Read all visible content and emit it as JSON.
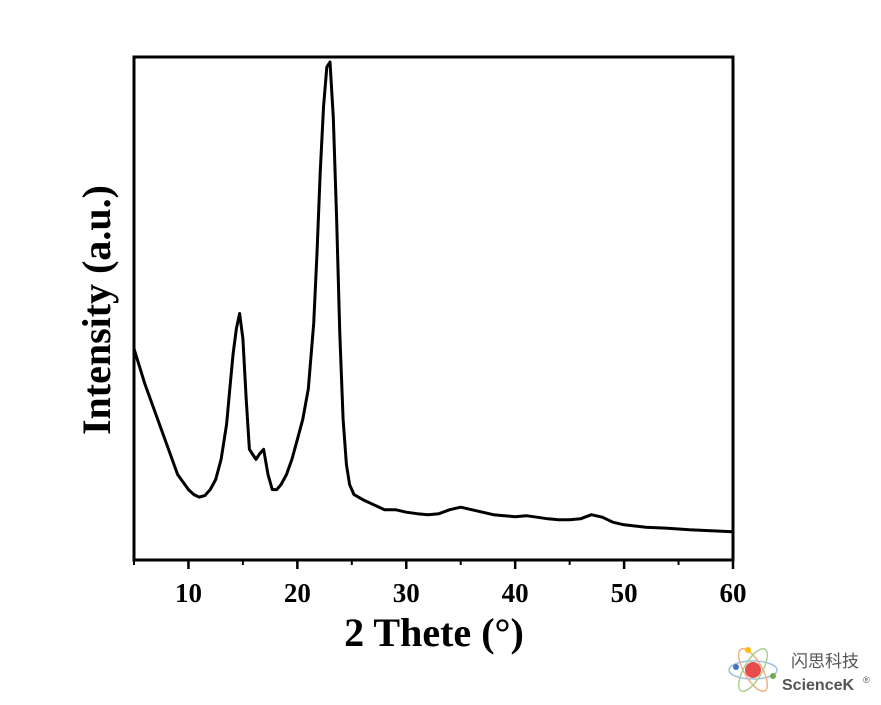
{
  "chart_data": {
    "type": "line",
    "title": "",
    "xlabel": "2 Thete (°)",
    "ylabel": "Intensity (a.u.)",
    "xlim": [
      5,
      60
    ],
    "ylim": [
      0,
      100
    ],
    "xticks": [
      10,
      20,
      30,
      40,
      50,
      60
    ],
    "yticks_shown": false,
    "grid": false,
    "legend": "none",
    "line_color": "#000000",
    "series": [
      {
        "x": [
          5,
          6,
          7,
          8,
          9,
          10,
          10.5,
          11,
          11.5,
          12,
          12.5,
          13,
          13.5,
          13.8,
          14.1,
          14.4,
          14.7,
          15.0,
          15.3,
          15.6,
          15.9,
          16.2,
          16.5,
          16.9,
          17.3,
          17.7,
          18.1,
          18.5,
          19,
          19.5,
          20,
          20.5,
          21,
          21.5,
          21.8,
          22.1,
          22.4,
          22.7,
          23.0,
          23.3,
          23.6,
          23.9,
          24.2,
          24.5,
          24.8,
          25.2,
          26,
          27,
          28,
          29,
          30,
          31,
          32,
          33,
          34,
          35,
          36,
          37,
          38,
          39,
          40,
          41,
          42,
          43,
          44,
          45,
          46,
          47,
          48,
          49,
          50,
          52,
          54,
          56,
          58,
          60
        ],
        "y": [
          42,
          35,
          29,
          23,
          17,
          14,
          13,
          12.5,
          12.8,
          14,
          16,
          20,
          27,
          34,
          41,
          46,
          49,
          44,
          32,
          22,
          21,
          20,
          21,
          22,
          17,
          14,
          14,
          15,
          17,
          20,
          24,
          28,
          34,
          47,
          61,
          77,
          90,
          98,
          99,
          88,
          68,
          45,
          28,
          19,
          15,
          13,
          12,
          11,
          10,
          10,
          9.5,
          9.2,
          9,
          9.2,
          10,
          10.5,
          10,
          9.5,
          9,
          8.8,
          8.6,
          8.8,
          8.5,
          8.2,
          8,
          8,
          8.2,
          9,
          8.5,
          7.5,
          7,
          6.5,
          6.3,
          6,
          5.8,
          5.6
        ]
      }
    ]
  },
  "watermark": {
    "cn_text": "闪思科技",
    "en_text": "ScienceK",
    "reg_mark": "®"
  }
}
